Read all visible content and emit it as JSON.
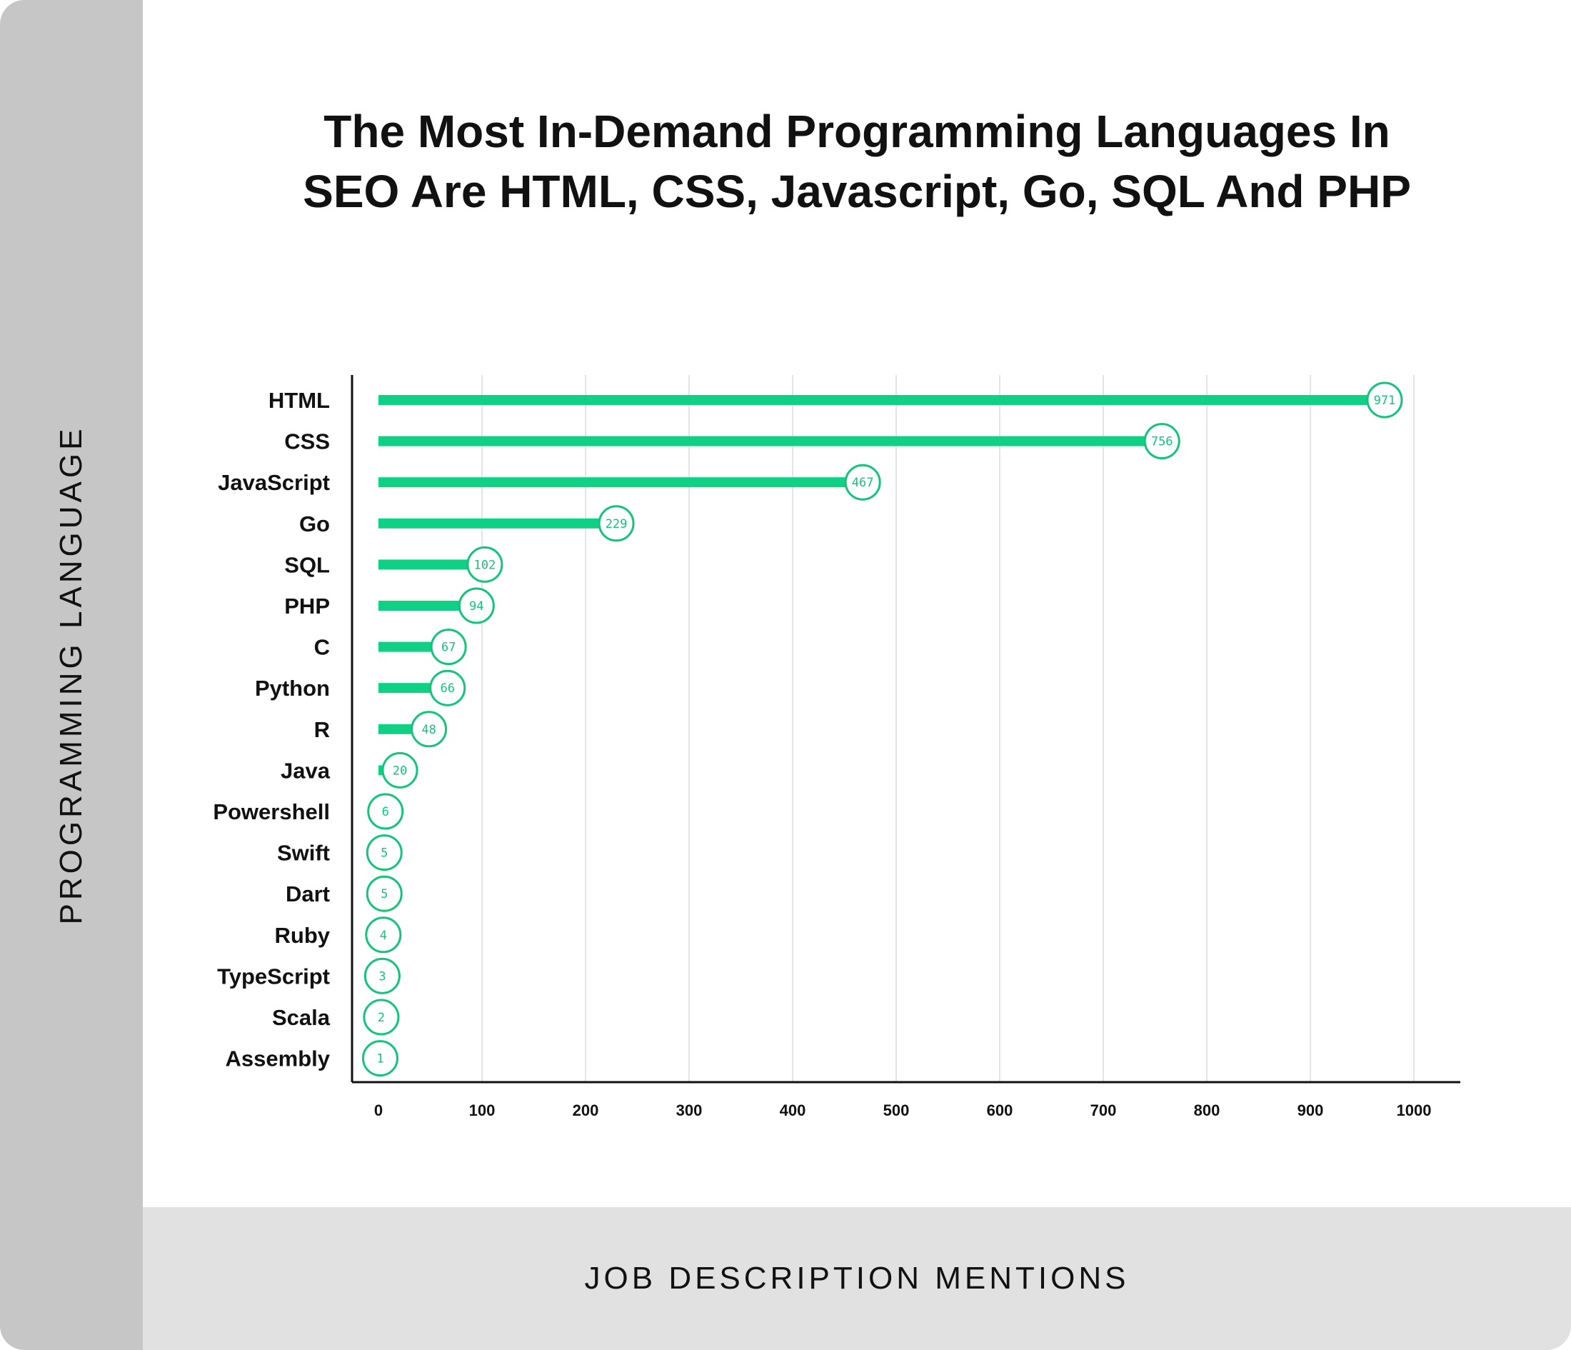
{
  "chart_data": {
    "type": "bar",
    "orientation": "horizontal",
    "title": "The Most In-Demand Programming Languages In SEO Are HTML, CSS, Javascript, Go, SQL And PHP",
    "xlabel": "JOB DESCRIPTION MENTIONS",
    "ylabel": "PROGRAMMING LANGUAGE",
    "categories": [
      "HTML",
      "CSS",
      "JavaScript",
      "Go",
      "SQL",
      "PHP",
      "C",
      "Python",
      "R",
      "Java",
      "Powershell",
      "Swift",
      "Dart",
      "Ruby",
      "TypeScript",
      "Scala",
      "Assembly"
    ],
    "values": [
      971,
      756,
      467,
      229,
      102,
      94,
      67,
      66,
      48,
      20,
      6,
      5,
      5,
      4,
      3,
      2,
      1
    ],
    "xlim": [
      0,
      1000
    ],
    "xticks": [
      0,
      100,
      200,
      300,
      400,
      500,
      600,
      700,
      800,
      900,
      1000
    ],
    "grid": "vertical",
    "bar_color": "#0fd084",
    "label_color": "#14c47a"
  }
}
